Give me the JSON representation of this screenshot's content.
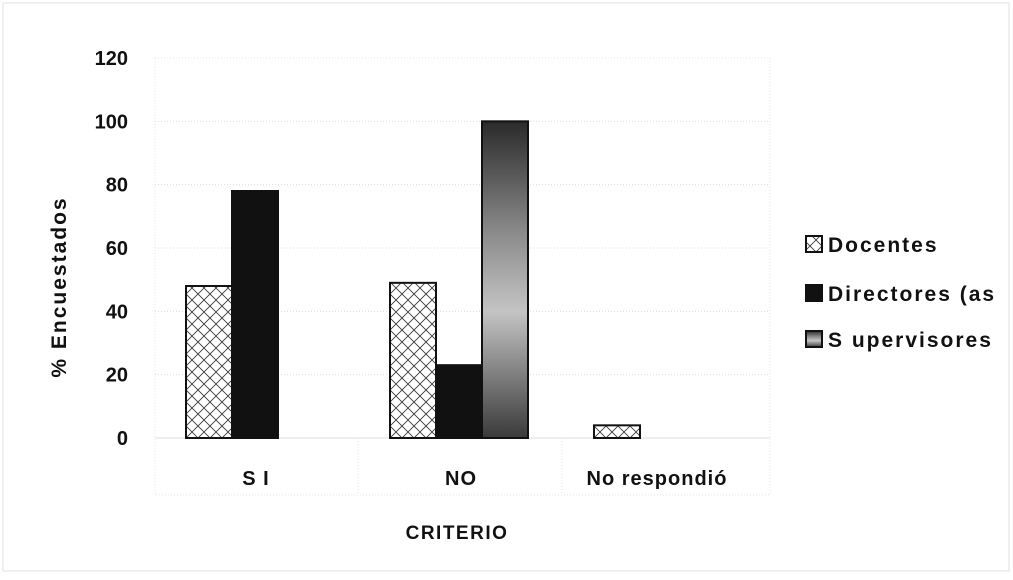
{
  "chart_data": {
    "type": "bar",
    "title": "",
    "xlabel": "CRITERIO",
    "ylabel": "%    Encuestados",
    "categories": [
      "S I",
      "NO",
      "No respondió"
    ],
    "series": [
      {
        "name": "Docentes",
        "values": [
          48,
          49,
          4
        ],
        "fill": "crosshatch"
      },
      {
        "name": "Directores (as",
        "values": [
          78,
          23,
          0
        ],
        "fill": "solid",
        "color": "#111111"
      },
      {
        "name": "S upervisores",
        "values": [
          null,
          100,
          null
        ],
        "fill": "gradient",
        "color": "#555555"
      }
    ],
    "y_ticks": [
      0,
      20,
      40,
      60,
      80,
      100,
      120
    ],
    "ylim": [
      0,
      120
    ],
    "grid": true,
    "legend_position": "right"
  }
}
